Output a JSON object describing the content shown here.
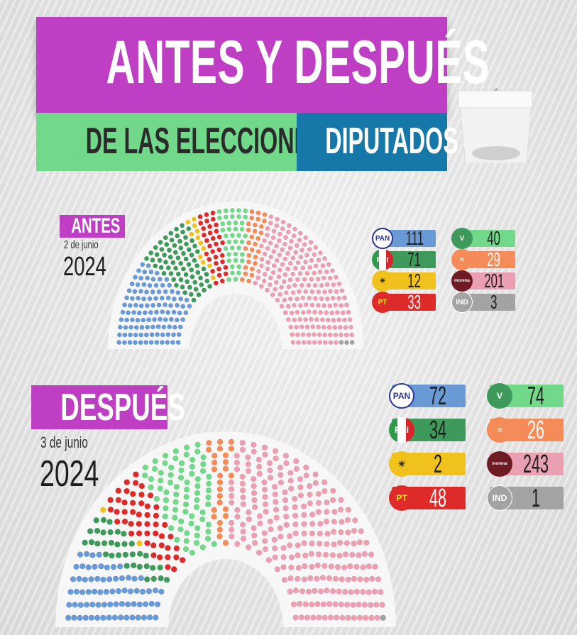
{
  "header": {
    "title": "ANTES Y DESPUÉS",
    "subtitle_left": "DE LAS ELECCIONES",
    "subtitle_right": "DIPUTADOS",
    "colors": {
      "title_bg": "#bf3fc4",
      "subtitle_left_bg": "#72d88a",
      "subtitle_right_bg": "#1678a8"
    }
  },
  "icons": {
    "ballot": "ballot-box-icon"
  },
  "chart_data": [
    {
      "type": "hemicycle",
      "title": "ANTES",
      "date": "2 de junio",
      "year": "2024",
      "categories": [
        "PAN",
        "PRI",
        "PRD",
        "PT",
        "VERDE",
        "MC",
        "MORENA",
        "IND"
      ],
      "values": [
        111,
        71,
        12,
        33,
        40,
        29,
        201,
        3
      ],
      "colors": [
        "#6a9ad6",
        "#3e9a5a",
        "#f2c21c",
        "#df2a2a",
        "#72d88a",
        "#f68b5a",
        "#ea9fb2",
        "#a3a3a3"
      ],
      "chart_order": [
        "PAN",
        "PRI",
        "PRD",
        "PT",
        "VERDE",
        "MC",
        "MORENA",
        "IND"
      ],
      "legend_labels": [
        "PAN",
        "PRI",
        "PRD",
        "PT",
        "VERDE",
        "MC",
        "MORENA",
        "IND"
      ]
    },
    {
      "type": "hemicycle",
      "title": "DESPUÉS",
      "date": "3 de junio",
      "year": "2024",
      "categories": [
        "PAN",
        "PRI",
        "PRD",
        "PT",
        "VERDE",
        "MC",
        "MORENA",
        "IND"
      ],
      "values": [
        72,
        34,
        2,
        48,
        74,
        26,
        243,
        1
      ],
      "colors": [
        "#6a9ad6",
        "#3e9a5a",
        "#f2c21c",
        "#df2a2a",
        "#72d88a",
        "#f68b5a",
        "#ea9fb2",
        "#a3a3a3"
      ],
      "chart_order": [
        "PAN",
        "PRI",
        "PRD",
        "PT",
        "VERDE",
        "MC",
        "MORENA",
        "IND"
      ],
      "legend_labels": [
        "PAN",
        "PRI",
        "PRD",
        "PT",
        "VERDE",
        "MC",
        "MORENA",
        "IND"
      ]
    }
  ]
}
